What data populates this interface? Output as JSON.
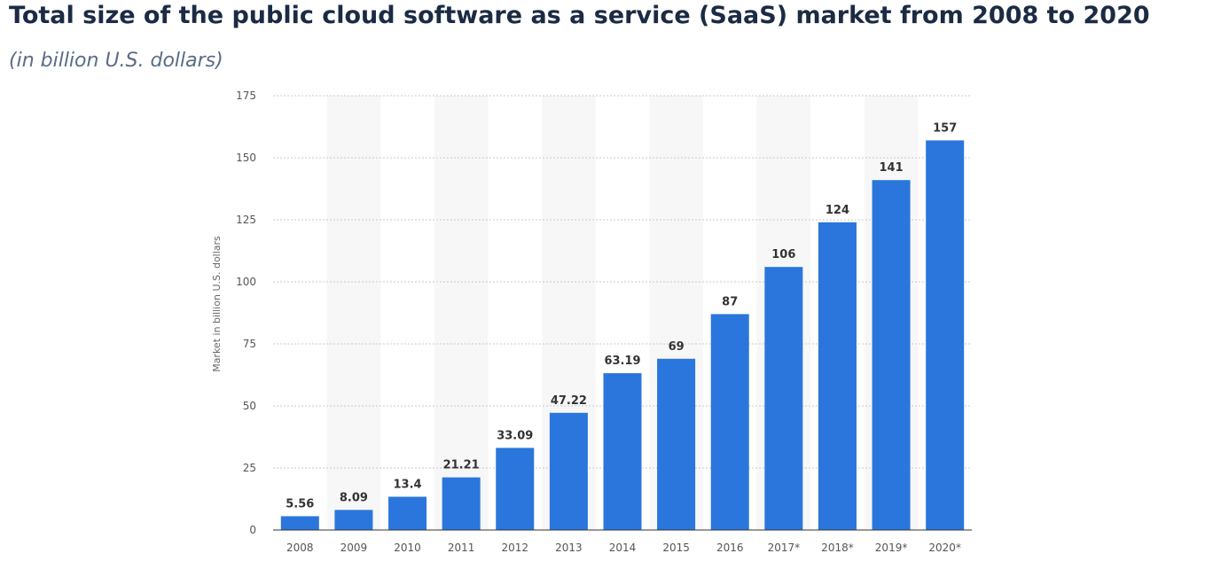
{
  "chart_data": {
    "type": "bar",
    "title": "Total size of the public cloud software as a service (SaaS) market from 2008 to 2020",
    "subtitle": "(in billion U.S. dollars)",
    "ylabel": "Market in billion U.S. dollars",
    "xlabel": "",
    "categories": [
      "2008",
      "2009",
      "2010",
      "2011",
      "2012",
      "2013",
      "2014",
      "2015",
      "2016",
      "2017*",
      "2018*",
      "2019*",
      "2020*"
    ],
    "values": [
      5.56,
      8.09,
      13.4,
      21.21,
      33.09,
      47.22,
      63.19,
      69,
      87,
      106,
      124,
      141,
      157
    ],
    "value_labels": [
      "5.56",
      "8.09",
      "13.4",
      "21.21",
      "33.09",
      "47.22",
      "63.19",
      "69",
      "87",
      "106",
      "124",
      "141",
      "157"
    ],
    "ylim": [
      0,
      175
    ],
    "yticks": [
      0,
      25,
      50,
      75,
      100,
      125,
      150,
      175
    ],
    "grid": true,
    "legend": "none",
    "bar_color": "#2a76dd",
    "band_color": "#f7f7f7"
  }
}
